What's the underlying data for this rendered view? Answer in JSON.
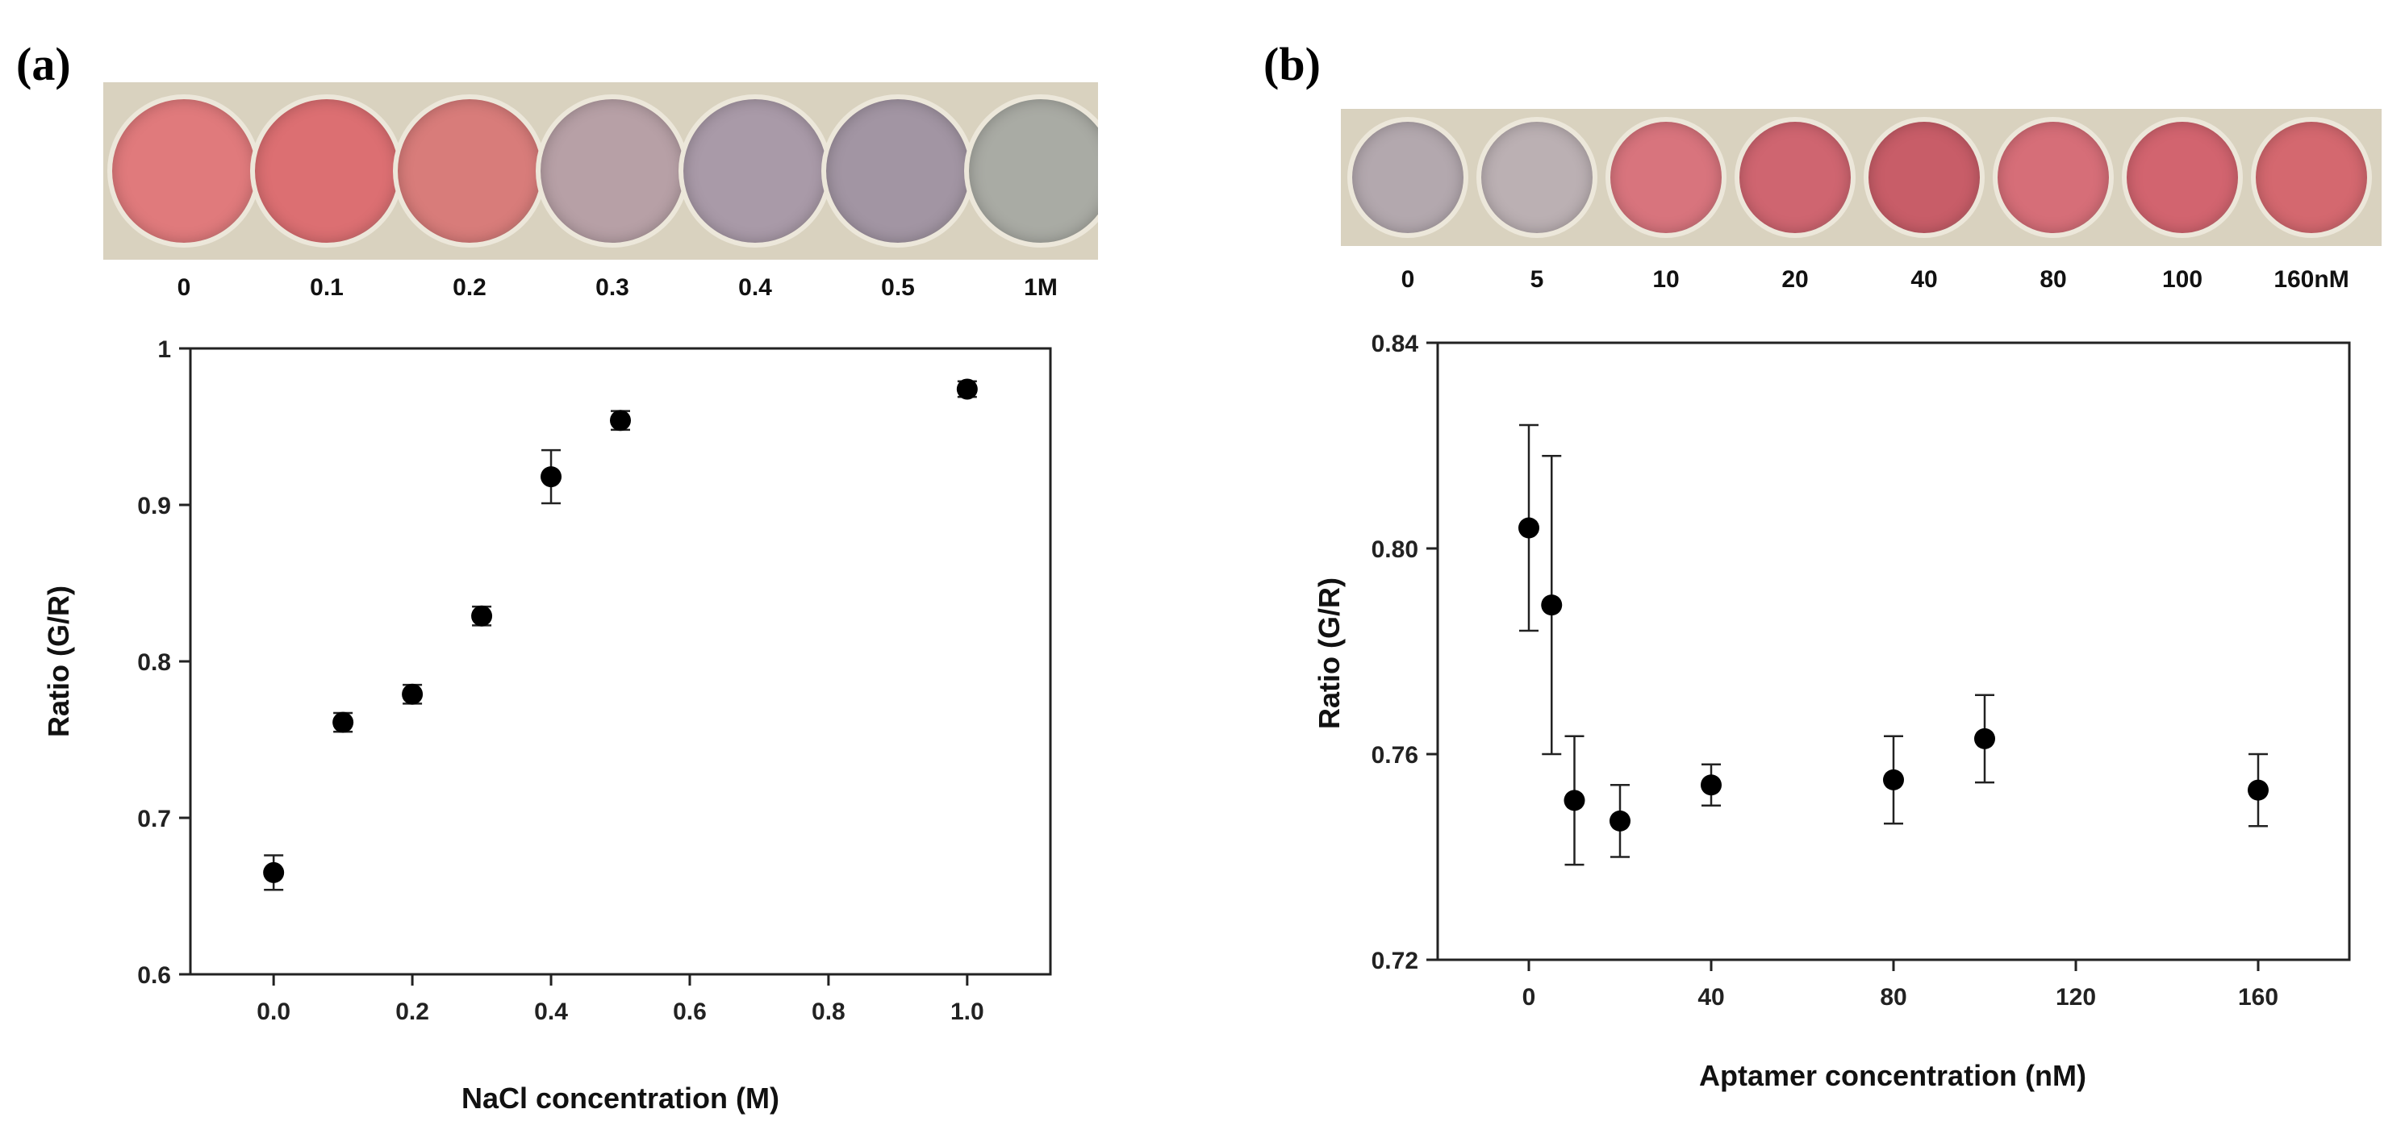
{
  "panels": [
    {
      "label": "(a)",
      "wells": [
        {
          "label": "0",
          "color": "#e07a7c"
        },
        {
          "label": "0.1",
          "color": "#dc6f72"
        },
        {
          "label": "0.2",
          "color": "#d87c7a"
        },
        {
          "label": "0.3",
          "color": "#b7a0a6"
        },
        {
          "label": "0.4",
          "color": "#a99aa8"
        },
        {
          "label": "0.5",
          "color": "#a295a3"
        },
        {
          "label": "1M",
          "color": "#a9aba4"
        }
      ]
    },
    {
      "label": "(b)",
      "wells": [
        {
          "label": "0",
          "color": "#b3a8ae"
        },
        {
          "label": "5",
          "color": "#bbb0b3"
        },
        {
          "label": "10",
          "color": "#d8747d"
        },
        {
          "label": "20",
          "color": "#cf6570"
        },
        {
          "label": "40",
          "color": "#c85d68"
        },
        {
          "label": "80",
          "color": "#d66e78"
        },
        {
          "label": "100",
          "color": "#d2646f"
        },
        {
          "label": "160nM",
          "color": "#d4686f"
        }
      ]
    }
  ],
  "chart_data": [
    {
      "type": "scatter",
      "title": "",
      "xlabel": "NaCl concentration (M)",
      "ylabel": "Ratio (G/R)",
      "xlim": [
        -0.12,
        1.12
      ],
      "ylim": [
        0.6,
        1.0
      ],
      "xticks": [
        0.0,
        0.2,
        0.4,
        0.6,
        0.8,
        1.0
      ],
      "xtick_labels": [
        "0.0",
        "0.2",
        "0.4",
        "0.6",
        "0.8",
        "1.0"
      ],
      "yticks": [
        0.6,
        0.7,
        0.8,
        0.9,
        1.0
      ],
      "ytick_labels": [
        "0.6",
        "0.7",
        "0.8",
        "0.9",
        "1"
      ],
      "x": [
        0.0,
        0.1,
        0.2,
        0.3,
        0.4,
        0.5,
        1.0
      ],
      "y": [
        0.665,
        0.761,
        0.779,
        0.829,
        0.918,
        0.954,
        0.974
      ],
      "err": [
        0.011,
        0.006,
        0.006,
        0.006,
        0.017,
        0.006,
        0.005
      ]
    },
    {
      "type": "scatter",
      "title": "",
      "xlabel": "Aptamer concentration (nM)",
      "ylabel": "Ratio (G/R)",
      "xlim": [
        -20,
        180
      ],
      "ylim": [
        0.72,
        0.84
      ],
      "xticks": [
        0,
        40,
        80,
        120,
        160
      ],
      "xtick_labels": [
        "0",
        "40",
        "80",
        "120",
        "160"
      ],
      "yticks": [
        0.72,
        0.76,
        0.8,
        0.84
      ],
      "ytick_labels": [
        "0.72",
        "0.76",
        "0.80",
        "0.84"
      ],
      "x": [
        0,
        5,
        10,
        20,
        40,
        80,
        100,
        160
      ],
      "y": [
        0.804,
        0.789,
        0.751,
        0.747,
        0.754,
        0.755,
        0.763,
        0.753
      ],
      "err": [
        0.02,
        0.029,
        0.0125,
        0.007,
        0.004,
        0.0085,
        0.0085,
        0.007
      ]
    }
  ]
}
